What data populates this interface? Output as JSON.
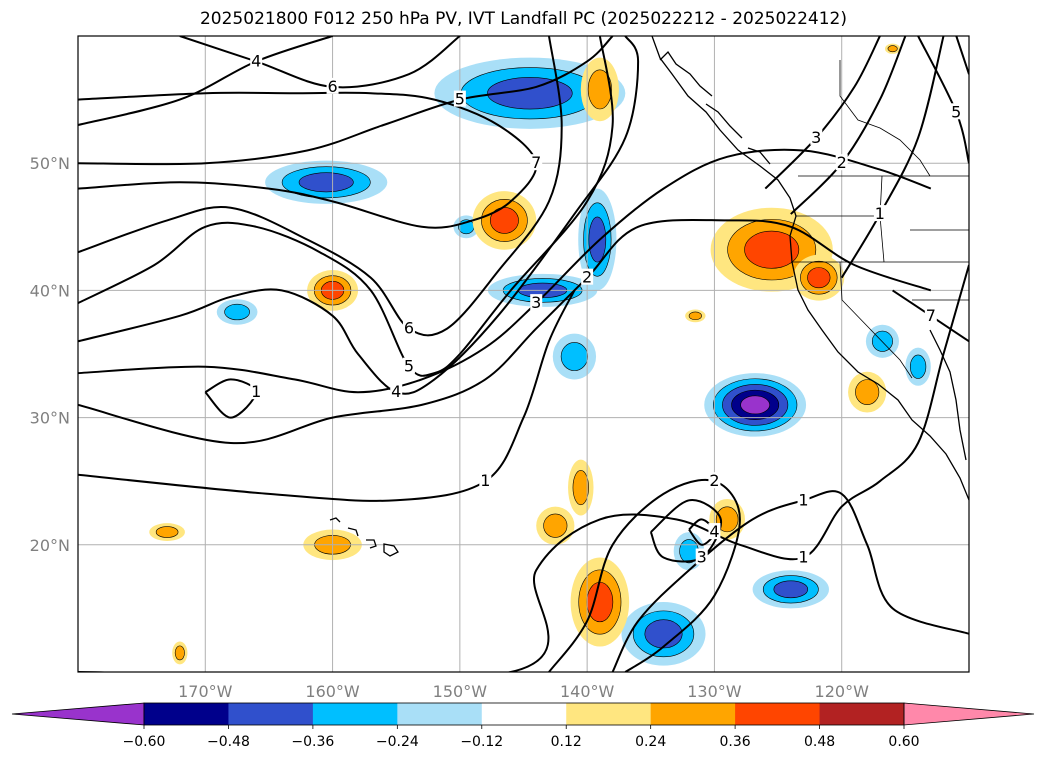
{
  "chart_data": {
    "type": "heatmap",
    "title": "2025021800 F012 250 hPa PV, IVT Landfall PC (2025022212 - 2025022412)",
    "xlabel": "",
    "ylabel": "",
    "xlim": [
      -180,
      -110
    ],
    "ylim": [
      10,
      60
    ],
    "grid": true,
    "x_ticks": [
      -170,
      -160,
      -150,
      -140,
      -130,
      -120
    ],
    "x_tick_labels": [
      "170°W",
      "160°W",
      "150°W",
      "140°W",
      "130°W",
      "120°W"
    ],
    "y_ticks": [
      20,
      30,
      40,
      50
    ],
    "y_tick_labels": [
      "20°N",
      "30°N",
      "40°N",
      "50°N"
    ],
    "colorbar": {
      "levels": [
        -0.6,
        -0.48,
        -0.36,
        -0.24,
        -0.12,
        0.12,
        0.24,
        0.36,
        0.48,
        0.6
      ],
      "tick_labels": [
        "−0.60",
        "−0.48",
        "−0.36",
        "−0.24",
        "−0.12",
        "0.12",
        "0.24",
        "0.36",
        "0.48",
        "0.60"
      ],
      "under_color": "#9933cc",
      "over_color": "#ff88aa",
      "colors": [
        "#00008b",
        "#3050cc",
        "#00bfff",
        "#a9dff7",
        "#ffffff",
        "#ffe680",
        "#ffa500",
        "#ff4500",
        "#b22222"
      ],
      "extend": "both"
    },
    "pv_contours": {
      "levels": [
        1,
        2,
        3,
        4,
        5,
        6,
        7
      ],
      "color": "#000000",
      "lines": [
        {
          "level": 1,
          "points": [
            [
              -180,
              25.5
            ],
            [
              -165,
              24
            ],
            [
              -155,
              23.5
            ],
            [
              -148,
              25
            ],
            [
              -145,
              30
            ],
            [
              -143,
              36
            ],
            [
              -141,
              40
            ]
          ]
        },
        {
          "level": 2,
          "points": [
            [
              -180,
              31
            ],
            [
              -168,
              28
            ],
            [
              -160,
              30
            ],
            [
              -153,
              31
            ],
            [
              -148,
              33
            ],
            [
              -144,
              37
            ],
            [
              -140,
              41
            ],
            [
              -136,
              45
            ],
            [
              -129,
              45.5
            ],
            [
              -124,
              45
            ],
            [
              -119,
              42
            ],
            [
              -113,
              40
            ]
          ]
        },
        {
          "level": 3,
          "points": [
            [
              -180,
              33.5
            ],
            [
              -170,
              34
            ],
            [
              -163,
              33
            ],
            [
              -158,
              32
            ],
            [
              -153,
              33
            ],
            [
              -148,
              35.5
            ],
            [
              -144,
              39
            ],
            [
              -139,
              44
            ],
            [
              -134,
              48
            ],
            [
              -129,
              50.5
            ],
            [
              -123,
              51
            ],
            [
              -117,
              49.5
            ],
            [
              -113,
              48
            ]
          ]
        },
        {
          "level": 4,
          "points": [
            [
              -180,
              36
            ],
            [
              -172,
              38
            ],
            [
              -168,
              39.5
            ],
            [
              -164,
              40
            ],
            [
              -160,
              38
            ],
            [
              -158,
              35
            ],
            [
              -155,
              32
            ],
            [
              -152,
              33
            ],
            [
              -147,
              38
            ],
            [
              -141,
              46
            ],
            [
              -137,
              52
            ],
            [
              -136,
              58
            ],
            [
              -137,
              60
            ]
          ]
        },
        {
          "level": 5,
          "points": [
            [
              -180,
              39
            ],
            [
              -174,
              42
            ],
            [
              -170,
              45
            ],
            [
              -166,
              45
            ],
            [
              -161,
              43
            ],
            [
              -157,
              40
            ],
            [
              -154,
              34
            ],
            [
              -152,
              33.5
            ],
            [
              -150,
              35
            ],
            [
              -146,
              40
            ],
            [
              -140,
              47
            ],
            [
              -138,
              53
            ],
            [
              -139,
              60
            ]
          ]
        },
        {
          "level": 6,
          "points": [
            [
              -180,
              43
            ],
            [
              -173,
              45.5
            ],
            [
              -168,
              46.5
            ],
            [
              -162,
              44
            ],
            [
              -157,
              41
            ],
            [
              -154,
              37
            ],
            [
              -151,
              37
            ],
            [
              -147,
              41.5
            ],
            [
              -143,
              47
            ],
            [
              -142,
              53
            ],
            [
              -143,
              60
            ]
          ]
        },
        {
          "level": 7,
          "points": [
            [
              -180,
              48
            ],
            [
              -172,
              48.5
            ],
            [
              -165,
              48
            ],
            [
              -160,
              47
            ],
            [
              -153,
              45
            ],
            [
              -149,
              45.5
            ],
            [
              -146,
              47
            ],
            [
              -144,
              50
            ],
            [
              -147,
              53
            ],
            [
              -152,
              55
            ],
            [
              -157,
              55.5
            ],
            [
              -163,
              55.5
            ],
            [
              -170,
              55.5
            ],
            [
              -180,
              55
            ]
          ]
        },
        {
          "level": 5,
          "points": [
            [
              -180,
              50
            ],
            [
              -170,
              50
            ],
            [
              -162,
              51
            ],
            [
              -156,
              53
            ],
            [
              -150,
              55
            ],
            [
              -144,
              56
            ],
            [
              -140,
              58
            ],
            [
              -138,
              60
            ]
          ]
        },
        {
          "level": 4,
          "points": [
            [
              -180,
              53
            ],
            [
              -172,
              55
            ],
            [
              -166,
              58
            ],
            [
              -160,
              60
            ]
          ]
        },
        {
          "level": 6,
          "points": [
            [
              -172,
              60
            ],
            [
              -166,
              58
            ],
            [
              -160,
              56
            ],
            [
              -154,
              57
            ],
            [
              -150,
              60
            ]
          ]
        },
        {
          "level": 1,
          "points": [
            [
              -180,
              10
            ],
            [
              -146,
              10
            ],
            [
              -144,
              18
            ],
            [
              -139,
              22
            ],
            [
              -133,
              22
            ],
            [
              -128,
              20
            ],
            [
              -123,
              19
            ],
            [
              -120,
              23
            ],
            [
              -117,
              25
            ],
            [
              -114,
              28
            ],
            [
              -112,
              35
            ],
            [
              -110,
              42
            ]
          ]
        },
        {
          "level": 1,
          "points": [
            [
              -138,
              10
            ],
            [
              -136,
              14
            ],
            [
              -132,
              18
            ],
            [
              -127,
              22
            ],
            [
              -123,
              23.5
            ],
            [
              -120,
              24
            ],
            [
              -118,
              20
            ],
            [
              -116,
              15
            ],
            [
              -110,
              13
            ]
          ]
        },
        {
          "level": 2,
          "points": [
            [
              -143,
              10
            ],
            [
              -140,
              14
            ],
            [
              -138,
              20
            ],
            [
              -134,
              24
            ],
            [
              -130,
              25
            ],
            [
              -128,
              22
            ],
            [
              -130,
              16
            ],
            [
              -134,
              12
            ],
            [
              -137,
              10
            ]
          ]
        },
        {
          "level": 3,
          "points": [
            [
              -135,
              21
            ],
            [
              -132,
              23.5
            ],
            [
              -129.5,
              22
            ],
            [
              -131,
              19
            ],
            [
              -134,
              19
            ],
            [
              -135,
              21
            ]
          ]
        },
        {
          "level": 4,
          "points": [
            [
              -132,
              21.2
            ],
            [
              -131,
              22
            ],
            [
              -130,
              21
            ],
            [
              -131,
              20
            ],
            [
              -132,
              21.2
            ]
          ]
        },
        {
          "level": 1,
          "points": [
            [
              -170,
              32
            ],
            [
              -168,
              33
            ],
            [
              -166,
              32
            ],
            [
              -168,
              30
            ],
            [
              -170,
              32
            ]
          ]
        },
        {
          "level": 1,
          "points": [
            [
              -112,
              60
            ],
            [
              -114,
              52
            ],
            [
              -117,
              46
            ],
            [
              -120,
              41
            ]
          ]
        },
        {
          "level": 2,
          "points": [
            [
              -115,
              60
            ],
            [
              -117,
              55
            ],
            [
              -120,
              50
            ],
            [
              -124,
              46
            ]
          ]
        },
        {
          "level": 3,
          "points": [
            [
              -117,
              60
            ],
            [
              -119,
              56
            ],
            [
              -122,
              52
            ],
            [
              -126,
              48
            ]
          ]
        },
        {
          "level": 5,
          "points": [
            [
              -114,
              60
            ],
            [
              -111,
              54
            ],
            [
              -110,
              50
            ]
          ]
        },
        {
          "level": 6,
          "points": [
            [
              -111,
              60
            ],
            [
              -110,
              57
            ]
          ]
        },
        {
          "level": 7,
          "points": [
            [
              -116,
              40
            ],
            [
              -113,
              38
            ],
            [
              -110,
              36
            ]
          ]
        }
      ]
    },
    "ivt_pc_anomalies": [
      {
        "lon": -144.5,
        "lat": 55.5,
        "rx": 7.5,
        "ry": 2.8,
        "value": -0.45
      },
      {
        "lon": -160.5,
        "lat": 48.5,
        "rx": 4.8,
        "ry": 1.7,
        "value": -0.45
      },
      {
        "lon": -149.5,
        "lat": 45.0,
        "rx": 1.0,
        "ry": 0.9,
        "value": -0.3
      },
      {
        "lon": -167.5,
        "lat": 38.3,
        "rx": 1.6,
        "ry": 1.0,
        "value": -0.3
      },
      {
        "lon": -143.5,
        "lat": 40.0,
        "rx": 4.3,
        "ry": 1.3,
        "value": -0.4
      },
      {
        "lon": -139.2,
        "lat": 44.0,
        "rx": 1.5,
        "ry": 4.0,
        "value": -0.38
      },
      {
        "lon": -141.0,
        "lat": 34.8,
        "rx": 1.7,
        "ry": 1.8,
        "value": -0.3
      },
      {
        "lon": -126.8,
        "lat": 31.0,
        "rx": 4.0,
        "ry": 2.5,
        "value": -0.62
      },
      {
        "lon": -134.0,
        "lat": 13.0,
        "rx": 3.3,
        "ry": 2.5,
        "value": -0.42
      },
      {
        "lon": -132.0,
        "lat": 19.5,
        "rx": 1.2,
        "ry": 1.5,
        "value": -0.3
      },
      {
        "lon": -124.0,
        "lat": 16.5,
        "rx": 3.0,
        "ry": 1.5,
        "value": -0.45
      },
      {
        "lon": -116.8,
        "lat": 36.0,
        "rx": 1.3,
        "ry": 1.3,
        "value": -0.3
      },
      {
        "lon": -114.0,
        "lat": 34.0,
        "rx": 1.0,
        "ry": 1.5,
        "value": -0.3
      },
      {
        "lon": -146.5,
        "lat": 45.5,
        "rx": 2.5,
        "ry": 2.3,
        "value": 0.45
      },
      {
        "lon": -160.0,
        "lat": 40.0,
        "rx": 2.0,
        "ry": 1.6,
        "value": 0.4
      },
      {
        "lon": -125.5,
        "lat": 43.2,
        "rx": 4.8,
        "ry": 3.3,
        "value": 0.46
      },
      {
        "lon": -121.8,
        "lat": 41.0,
        "rx": 2.0,
        "ry": 1.8,
        "value": 0.4
      },
      {
        "lon": -139.0,
        "lat": 55.8,
        "rx": 1.5,
        "ry": 2.5,
        "value": 0.3
      },
      {
        "lon": -118.0,
        "lat": 32.0,
        "rx": 1.5,
        "ry": 1.6,
        "value": 0.3
      },
      {
        "lon": -140.5,
        "lat": 24.5,
        "rx": 1.0,
        "ry": 2.2,
        "value": 0.3
      },
      {
        "lon": -142.5,
        "lat": 21.5,
        "rx": 1.5,
        "ry": 1.5,
        "value": 0.3
      },
      {
        "lon": -139.0,
        "lat": 15.5,
        "rx": 2.3,
        "ry": 3.5,
        "value": 0.4
      },
      {
        "lon": -129.0,
        "lat": 22.0,
        "rx": 1.4,
        "ry": 1.6,
        "value": 0.3
      },
      {
        "lon": -160.0,
        "lat": 20.0,
        "rx": 2.3,
        "ry": 1.2,
        "value": 0.3
      },
      {
        "lon": -173.0,
        "lat": 21.0,
        "rx": 1.4,
        "ry": 0.7,
        "value": 0.3
      },
      {
        "lon": -172.0,
        "lat": 11.5,
        "rx": 0.6,
        "ry": 0.9,
        "value": 0.3
      },
      {
        "lon": -131.5,
        "lat": 38.0,
        "rx": 0.8,
        "ry": 0.5,
        "value": 0.3
      },
      {
        "lon": -116.0,
        "lat": 59.0,
        "rx": 0.6,
        "ry": 0.4,
        "value": 0.3
      }
    ]
  }
}
